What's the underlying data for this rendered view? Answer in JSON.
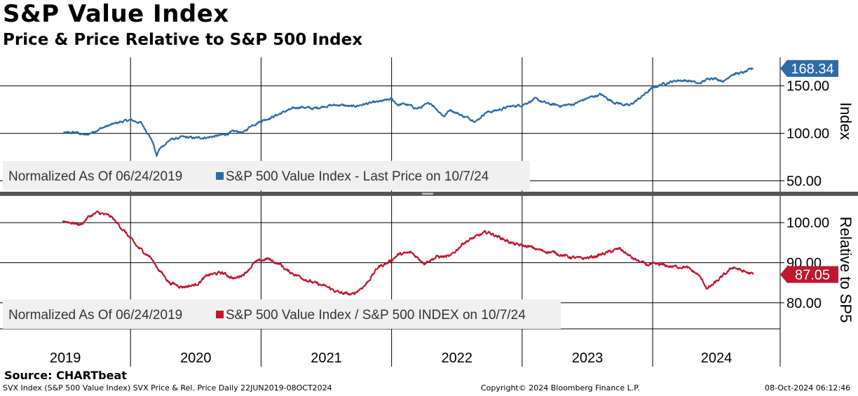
{
  "header": {
    "title": "S&P Value Index",
    "subtitle": "Price & Price Relative to S&P 500 Index"
  },
  "footer": {
    "source": "Source: CHARTbeat",
    "description": "SVX Index (S&P 500 Value Index) SVX Price & Rel. Price  Daily 22JUN2019-08OCT2024",
    "copyright": "Copyright© 2024 Bloomberg Finance L.P.",
    "timestamp": "08-Oct-2024 06:12:46"
  },
  "chart_data": [
    {
      "type": "line",
      "panel": "top",
      "ylabel": "Index",
      "ylim": [
        40,
        180
      ],
      "yticks": [
        50,
        100,
        150
      ],
      "ytick_labels": [
        "50.00",
        "100.00",
        "150.00"
      ],
      "grid": true,
      "legend": {
        "placement": "bottom-left",
        "note": "Normalized As Of 06/24/2019",
        "entry": "S&P 500 Value Index - Last Price on 10/7/24"
      },
      "last_value_label": "168.34",
      "color": "#2e6aa6",
      "series": [
        {
          "name": "S&P 500 Value Index - Last Price on 10/7/24",
          "x": [
            2019.48,
            2019.58,
            2019.66,
            2019.75,
            2019.83,
            2019.92,
            2020.0,
            2020.08,
            2020.13,
            2020.17,
            2020.2,
            2020.22,
            2020.25,
            2020.3,
            2020.4,
            2020.5,
            2020.6,
            2020.7,
            2020.8,
            2020.87,
            2020.92,
            2021.0,
            2021.1,
            2021.2,
            2021.3,
            2021.4,
            2021.5,
            2021.6,
            2021.7,
            2021.8,
            2021.9,
            2022.0,
            2022.05,
            2022.1,
            2022.2,
            2022.3,
            2022.4,
            2022.45,
            2022.55,
            2022.65,
            2022.72,
            2022.8,
            2022.9,
            2023.0,
            2023.1,
            2023.2,
            2023.3,
            2023.4,
            2023.5,
            2023.6,
            2023.7,
            2023.82,
            2023.9,
            2024.0,
            2024.1,
            2024.2,
            2024.3,
            2024.35,
            2024.45,
            2024.55,
            2024.6,
            2024.7,
            2024.77
          ],
          "values": [
            100,
            101,
            98,
            104,
            108,
            112,
            114,
            111,
            101,
            91,
            76,
            83,
            87,
            93,
            96,
            95,
            96,
            98,
            102,
            101,
            108,
            113,
            118,
            124,
            128,
            126,
            129,
            130,
            128,
            131,
            133,
            136,
            130,
            131,
            126,
            132,
            118,
            125,
            118,
            113,
            122,
            124,
            128,
            130,
            136,
            131,
            129,
            131,
            137,
            141,
            133,
            129,
            137,
            148,
            153,
            156,
            155,
            152,
            159,
            155,
            162,
            164,
            168.34
          ]
        }
      ]
    },
    {
      "type": "line",
      "panel": "bottom",
      "ylabel": "Relative to SP5",
      "ylim": [
        73.5,
        106.5
      ],
      "yticks": [
        80,
        90,
        100
      ],
      "ytick_labels": [
        "80.00",
        "90.00",
        "100.00"
      ],
      "grid": true,
      "legend": {
        "placement": "bottom-left",
        "note": "Normalized As Of 06/24/2019",
        "entry": "S&P 500 Value Index / S&P 500 INDEX on 10/7/24"
      },
      "last_value_label": "87.05",
      "color": "#c0172f",
      "series": [
        {
          "name": "S&P 500 Value Index / S&P 500 INDEX on 10/7/24",
          "x": [
            2019.48,
            2019.55,
            2019.62,
            2019.68,
            2019.75,
            2019.85,
            2019.95,
            2020.05,
            2020.15,
            2020.2,
            2020.3,
            2020.4,
            2020.5,
            2020.6,
            2020.7,
            2020.8,
            2020.88,
            2020.95,
            2021.05,
            2021.15,
            2021.2,
            2021.3,
            2021.4,
            2021.5,
            2021.6,
            2021.7,
            2021.8,
            2021.9,
            2021.97,
            2022.05,
            2022.15,
            2022.25,
            2022.35,
            2022.45,
            2022.55,
            2022.65,
            2022.72,
            2022.75,
            2022.85,
            2022.95,
            2023.05,
            2023.15,
            2023.25,
            2023.35,
            2023.45,
            2023.55,
            2023.65,
            2023.75,
            2023.85,
            2023.95,
            2024.05,
            2024.15,
            2024.25,
            2024.35,
            2024.42,
            2024.48,
            2024.55,
            2024.62,
            2024.68,
            2024.77
          ],
          "values": [
            100.5,
            100,
            99.5,
            101.5,
            102.5,
            101.5,
            98,
            94,
            91.5,
            89,
            85,
            84,
            84.5,
            87,
            87.5,
            86,
            87.5,
            90,
            91,
            89.5,
            88,
            86.5,
            85,
            84,
            82.5,
            82,
            84.5,
            89,
            90,
            92,
            92.5,
            90,
            91.5,
            91.5,
            95,
            96.5,
            97.5,
            97.5,
            96,
            94.5,
            94,
            93,
            92.5,
            91.5,
            91,
            91.5,
            92.5,
            93.5,
            91,
            89.5,
            89.5,
            89,
            89,
            87,
            83.5,
            85,
            87,
            89,
            88,
            87.05
          ]
        }
      ]
    }
  ],
  "x_axis": {
    "years": [
      "2019",
      "2020",
      "2021",
      "2022",
      "2023",
      "2024"
    ]
  },
  "colors": {
    "price": "#2e6aa6",
    "relative": "#c0172f",
    "grid": "#000000",
    "legend_bg": "#f0f0f0"
  }
}
